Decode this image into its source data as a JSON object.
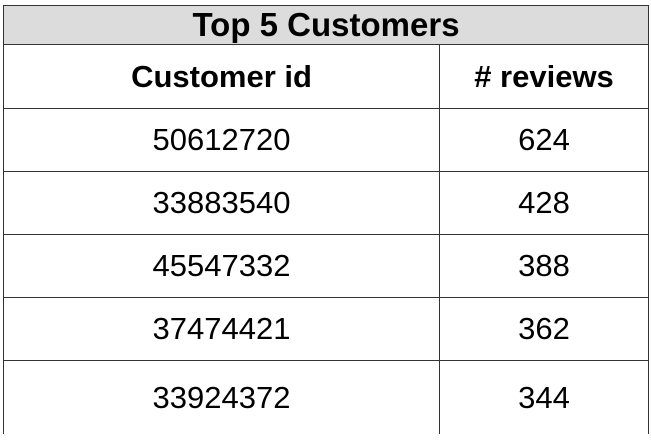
{
  "title": "Top 5 Customers",
  "columns": [
    "Customer id",
    "# reviews"
  ],
  "rows": [
    [
      "50612720",
      "624"
    ],
    [
      "33883540",
      "428"
    ],
    [
      "45547332",
      "388"
    ],
    [
      "37474421",
      "362"
    ],
    [
      "33924372",
      "344"
    ]
  ],
  "colors": {
    "title_background": "#dcdcdc",
    "border": "#333333"
  }
}
